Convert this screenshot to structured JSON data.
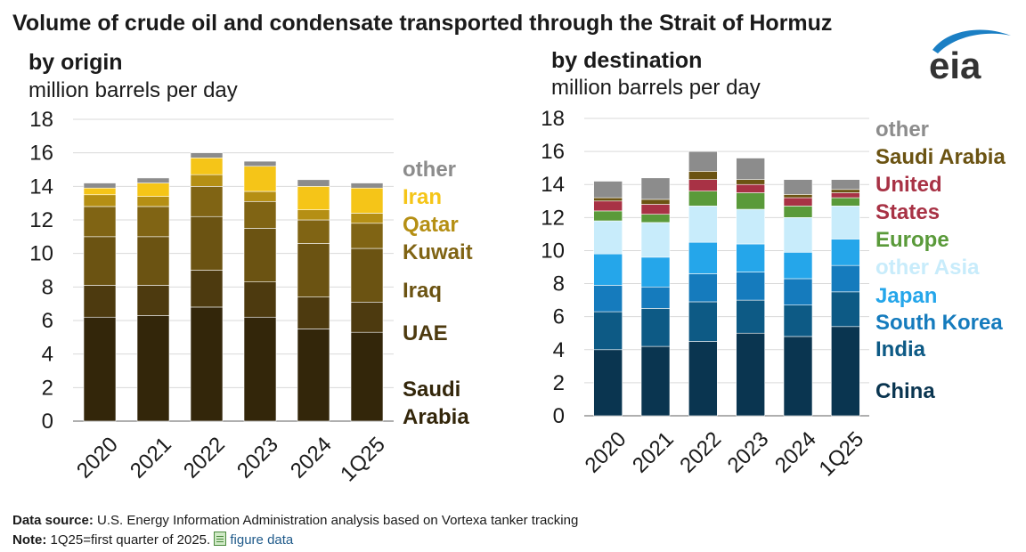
{
  "title": "Volume of crude oil and condensate transported through the Strait of Hormuz",
  "logo_text": "eia",
  "footer": {
    "source_label": "Data source:",
    "source_text": "U.S. Energy Information Administration analysis based on Vortexa tanker tracking",
    "note_label": "Note:",
    "note_text": "1Q25=first quarter of 2025.",
    "link_text": "figure data"
  },
  "chart_data": [
    {
      "type": "bar",
      "stacked": true,
      "title": "by origin",
      "ylabel": "million barrels per day",
      "ylim": [
        0,
        18
      ],
      "yticks": [
        0,
        2,
        4,
        6,
        8,
        10,
        12,
        14,
        16,
        18
      ],
      "grid": true,
      "legend": "right, inline labels",
      "categories": [
        "2020",
        "2021",
        "2022",
        "2023",
        "2024",
        "1Q25"
      ],
      "series": [
        {
          "name": "Saudi Arabia",
          "color": "#33260a",
          "values": [
            6.2,
            6.3,
            6.8,
            6.2,
            5.5,
            5.3
          ]
        },
        {
          "name": "UAE",
          "color": "#4d3a0f",
          "values": [
            1.9,
            1.8,
            2.2,
            2.1,
            1.9,
            1.8
          ]
        },
        {
          "name": "Iraq",
          "color": "#6b5312",
          "values": [
            2.9,
            2.9,
            3.2,
            3.2,
            3.2,
            3.2
          ]
        },
        {
          "name": "Kuwait",
          "color": "#806414",
          "values": [
            1.8,
            1.8,
            1.8,
            1.6,
            1.4,
            1.5
          ]
        },
        {
          "name": "Qatar",
          "color": "#b58f14",
          "values": [
            0.7,
            0.6,
            0.7,
            0.6,
            0.6,
            0.6
          ]
        },
        {
          "name": "Iran",
          "color": "#f5c518",
          "values": [
            0.4,
            0.8,
            1.0,
            1.5,
            1.4,
            1.5
          ]
        },
        {
          "name": "other",
          "color": "#8c8c8c",
          "values": [
            0.3,
            0.3,
            0.3,
            0.3,
            0.4,
            0.3
          ]
        }
      ]
    },
    {
      "type": "bar",
      "stacked": true,
      "title": "by destination",
      "ylabel": "million barrels per day",
      "ylim": [
        0,
        18
      ],
      "yticks": [
        0,
        2,
        4,
        6,
        8,
        10,
        12,
        14,
        16,
        18
      ],
      "grid": true,
      "legend": "right, inline labels",
      "categories": [
        "2020",
        "2021",
        "2022",
        "2023",
        "2024",
        "1Q25"
      ],
      "series": [
        {
          "name": "China",
          "color": "#0a3550",
          "values": [
            4.0,
            4.2,
            4.5,
            5.0,
            4.8,
            5.4
          ]
        },
        {
          "name": "India",
          "color": "#0d5a85",
          "values": [
            2.3,
            2.3,
            2.4,
            2.0,
            1.9,
            2.1
          ]
        },
        {
          "name": "South Korea",
          "color": "#157bbd",
          "values": [
            1.6,
            1.3,
            1.7,
            1.7,
            1.6,
            1.6
          ]
        },
        {
          "name": "Japan",
          "color": "#25a6ea",
          "values": [
            1.9,
            1.8,
            1.9,
            1.7,
            1.6,
            1.6
          ]
        },
        {
          "name": "other Asia",
          "color": "#c8ecfb",
          "values": [
            2.0,
            2.1,
            2.2,
            2.1,
            2.1,
            2.0
          ]
        },
        {
          "name": "Europe",
          "color": "#5a9a3a",
          "values": [
            0.6,
            0.5,
            0.9,
            1.0,
            0.7,
            0.5
          ]
        },
        {
          "name": "United States",
          "color": "#a83245",
          "values": [
            0.6,
            0.6,
            0.7,
            0.5,
            0.5,
            0.3
          ]
        },
        {
          "name": "Saudi Arabia",
          "color": "#6b5312",
          "values": [
            0.2,
            0.3,
            0.5,
            0.3,
            0.2,
            0.2
          ]
        },
        {
          "name": "other",
          "color": "#8c8c8c",
          "values": [
            1.0,
            1.3,
            1.2,
            1.3,
            0.9,
            0.6
          ]
        }
      ]
    }
  ]
}
